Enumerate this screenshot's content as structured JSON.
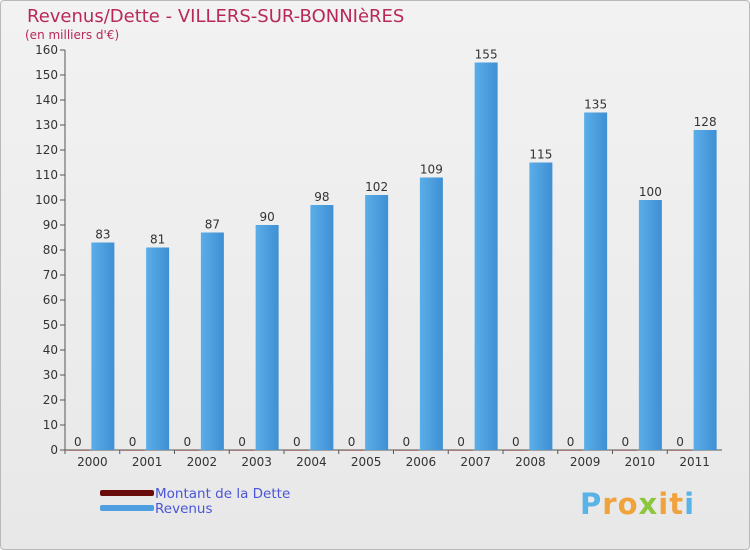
{
  "header": {
    "title": "Revenus/Dette - VILLERS-SUR-BONNIèRES",
    "subtitle": "(en milliers d'€)"
  },
  "chart_data": {
    "type": "bar",
    "title": "Revenus/Dette - VILLERS-SUR-BONNIèRES",
    "ylabel": "(en milliers d'€)",
    "xlabel": "",
    "categories": [
      "2000",
      "2001",
      "2002",
      "2003",
      "2004",
      "2005",
      "2006",
      "2007",
      "2008",
      "2009",
      "2010",
      "2011"
    ],
    "series": [
      {
        "name": "Montant de la Dette",
        "color": "#6b0c0c",
        "values": [
          0,
          0,
          0,
          0,
          0,
          0,
          0,
          0,
          0,
          0,
          0,
          0
        ]
      },
      {
        "name": "Revenus",
        "color": "#4f9fe0",
        "values": [
          83,
          81,
          87,
          90,
          98,
          102,
          109,
          155,
          115,
          135,
          100,
          128
        ]
      }
    ],
    "ylim": [
      0,
      160
    ],
    "yticks": [
      0,
      10,
      20,
      30,
      40,
      50,
      60,
      70,
      80,
      90,
      100,
      110,
      120,
      130,
      140,
      150,
      160
    ],
    "grid": false,
    "legend": "bottom-left"
  },
  "legend": {
    "items": [
      {
        "label": "Montant de la Dette",
        "color": "#6b0c0c"
      },
      {
        "label": "Revenus",
        "color": "#4f9fe0"
      }
    ]
  },
  "brand": {
    "letters": [
      "P",
      "r",
      "o",
      "x",
      "i",
      "t",
      "i"
    ],
    "colors": [
      "#5ab3e6",
      "#f0a23c",
      "#f0a23c",
      "#8cc63f",
      "#f0a23c",
      "#f0a23c",
      "#5ab3e6"
    ]
  }
}
